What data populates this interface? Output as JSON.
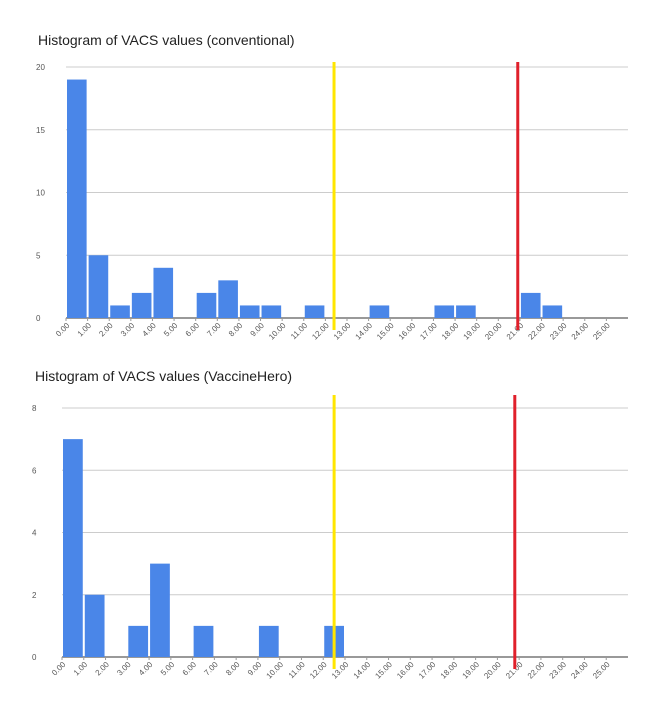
{
  "chart_data": [
    {
      "type": "histogram",
      "title": "Histogram of VACS values (conventional)",
      "bins": [
        0,
        1,
        2,
        3,
        4,
        5,
        6,
        7,
        8,
        9,
        10,
        11,
        12,
        13,
        14,
        15,
        16,
        17,
        18,
        19,
        20,
        21,
        22,
        23,
        24,
        25,
        26
      ],
      "values": [
        19,
        5,
        1,
        2,
        4,
        0,
        2,
        3,
        1,
        1,
        0,
        1,
        0,
        0,
        1,
        0,
        0,
        1,
        1,
        0,
        0,
        2,
        1,
        0,
        0,
        0
      ],
      "color": "#4a86e8",
      "xlim": [
        0,
        26
      ],
      "xticks": [
        {
          "value": 0,
          "label": "0.00"
        },
        {
          "value": 1,
          "label": "1.00"
        },
        {
          "value": 2,
          "label": "2.00"
        },
        {
          "value": 3,
          "label": "3.00"
        },
        {
          "value": 4,
          "label": "4.00"
        },
        {
          "value": 5,
          "label": "5.00"
        },
        {
          "value": 6,
          "label": "6.00"
        },
        {
          "value": 7,
          "label": "7.00"
        },
        {
          "value": 8,
          "label": "8.00"
        },
        {
          "value": 9,
          "label": "9.00"
        },
        {
          "value": 10,
          "label": "10.00"
        },
        {
          "value": 11,
          "label": "11.00"
        },
        {
          "value": 12,
          "label": "12.00"
        },
        {
          "value": 13,
          "label": "13.00"
        },
        {
          "value": 14,
          "label": "14.00"
        },
        {
          "value": 15,
          "label": "15.00"
        },
        {
          "value": 16,
          "label": "16.00"
        },
        {
          "value": 17,
          "label": "17.00"
        },
        {
          "value": 18,
          "label": "18.00"
        },
        {
          "value": 19,
          "label": "19.00"
        },
        {
          "value": 20,
          "label": "20.00"
        },
        {
          "value": 21,
          "label": "21.00"
        },
        {
          "value": 22,
          "label": "22.00"
        },
        {
          "value": 23,
          "label": "23.00"
        },
        {
          "value": 24,
          "label": "24.00"
        },
        {
          "value": 25,
          "label": "25.00"
        }
      ],
      "ylim": [
        0,
        20
      ],
      "yticks": [
        0,
        5,
        10,
        15,
        20
      ],
      "grid": true,
      "reference_lines": [
        {
          "value": 12.4,
          "color": "#ffe600"
        },
        {
          "value": 20.9,
          "color": "#e0202b"
        }
      ]
    },
    {
      "type": "histogram",
      "title": "Histogram of VACS values (VaccineHero)",
      "bins": [
        0,
        1,
        2,
        3,
        4,
        5,
        6,
        7,
        8,
        9,
        10,
        11,
        12,
        13,
        14,
        15,
        16,
        17,
        18,
        19,
        20,
        21,
        22,
        23,
        24,
        25,
        26
      ],
      "values": [
        7,
        2,
        0,
        1,
        3,
        0,
        1,
        0,
        0,
        1,
        0,
        0,
        1,
        0,
        0,
        0,
        0,
        0,
        0,
        0,
        0,
        0,
        0,
        0,
        0,
        0
      ],
      "color": "#4a86e8",
      "xlim": [
        0,
        26
      ],
      "xticks": [
        {
          "value": 0,
          "label": "0.00"
        },
        {
          "value": 1,
          "label": "1.00"
        },
        {
          "value": 2,
          "label": "2.00"
        },
        {
          "value": 3,
          "label": "3.00"
        },
        {
          "value": 4,
          "label": "4.00"
        },
        {
          "value": 5,
          "label": "5.00"
        },
        {
          "value": 6,
          "label": "6.00"
        },
        {
          "value": 7,
          "label": "7.00"
        },
        {
          "value": 8,
          "label": "8.00"
        },
        {
          "value": 9,
          "label": "9.00"
        },
        {
          "value": 10,
          "label": "10.00"
        },
        {
          "value": 11,
          "label": "11.00"
        },
        {
          "value": 12,
          "label": "12.00"
        },
        {
          "value": 13,
          "label": "13.00"
        },
        {
          "value": 14,
          "label": "14.00"
        },
        {
          "value": 15,
          "label": "15.00"
        },
        {
          "value": 16,
          "label": "16.00"
        },
        {
          "value": 17,
          "label": "17.00"
        },
        {
          "value": 18,
          "label": "18.00"
        },
        {
          "value": 19,
          "label": "19.00"
        },
        {
          "value": 20,
          "label": "20.00"
        },
        {
          "value": 21,
          "label": "21.00"
        },
        {
          "value": 22,
          "label": "22.00"
        },
        {
          "value": 23,
          "label": "23.00"
        },
        {
          "value": 24,
          "label": "24.00"
        },
        {
          "value": 25,
          "label": "25.00"
        }
      ],
      "ylim": [
        0,
        8
      ],
      "yticks": [
        0,
        2,
        4,
        6,
        8
      ],
      "grid": true,
      "reference_lines": [
        {
          "value": 12.5,
          "color": "#ffe600"
        },
        {
          "value": 20.8,
          "color": "#e0202b"
        }
      ]
    }
  ]
}
